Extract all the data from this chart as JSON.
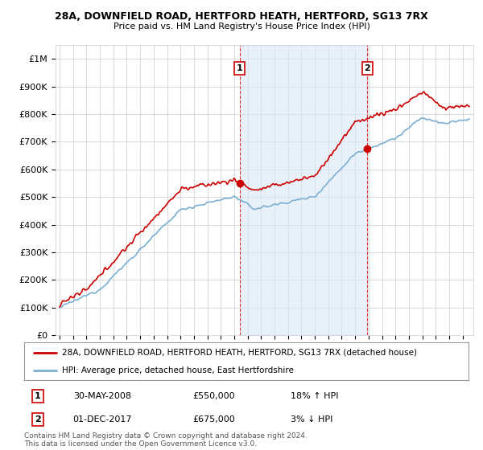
{
  "title": "28A, DOWNFIELD ROAD, HERTFORD HEATH, HERTFORD, SG13 7RX",
  "subtitle": "Price paid vs. HM Land Registry's House Price Index (HPI)",
  "ytick_values": [
    0,
    100000,
    200000,
    300000,
    400000,
    500000,
    600000,
    700000,
    800000,
    900000,
    1000000
  ],
  "ylim": [
    0,
    1050000
  ],
  "xlim_start": 1994.7,
  "xlim_end": 2025.8,
  "sale1_x": 2008.41,
  "sale1_y": 550000,
  "sale2_x": 2017.92,
  "sale2_y": 675000,
  "sale1_date": "30-MAY-2008",
  "sale1_price": "£550,000",
  "sale1_hpi": "18% ↑ HPI",
  "sale2_date": "01-DEC-2017",
  "sale2_price": "£675,000",
  "sale2_hpi": "3% ↓ HPI",
  "hpi_color": "#7bafd4",
  "hpi_fill_color": "#dae8f5",
  "price_color": "#cc0000",
  "legend_label1": "28A, DOWNFIELD ROAD, HERTFORD HEATH, HERTFORD, SG13 7RX (detached house)",
  "legend_label2": "HPI: Average price, detached house, East Hertfordshire",
  "footnote": "Contains HM Land Registry data © Crown copyright and database right 2024.\nThis data is licensed under the Open Government Licence v3.0.",
  "background_color": "#ffffff",
  "grid_color": "#cccccc"
}
